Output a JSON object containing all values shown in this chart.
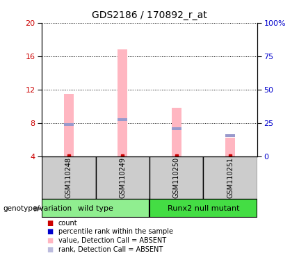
{
  "title": "GDS2186 / 170892_r_at",
  "samples": [
    "GSM110248",
    "GSM110249",
    "GSM110250",
    "GSM110251"
  ],
  "groups": [
    {
      "name": "wild type",
      "color": "#90EE90",
      "indices": [
        0,
        1
      ]
    },
    {
      "name": "Runx2 null mutant",
      "color": "#44DD44",
      "indices": [
        2,
        3
      ]
    }
  ],
  "ylim_left": [
    4,
    20
  ],
  "ylim_right": [
    0,
    100
  ],
  "yticks_left": [
    4,
    8,
    12,
    16,
    20
  ],
  "yticks_right": [
    0,
    25,
    50,
    75,
    100
  ],
  "ytick_labels_left": [
    "4",
    "8",
    "12",
    "16",
    "20"
  ],
  "ytick_labels_right": [
    "0",
    "25",
    "50",
    "75",
    "100%"
  ],
  "pink_bar_tops": [
    11.5,
    16.8,
    9.8,
    6.2
  ],
  "pink_bar_bottom": 4.0,
  "blue_seg_centers": [
    7.8,
    8.4,
    7.3,
    6.5
  ],
  "blue_seg_height": 0.35,
  "pink_bar_width": 0.18,
  "blue_bar_width": 0.18,
  "bar_positions": [
    0.5,
    1.5,
    2.5,
    3.5
  ],
  "xlim": [
    0,
    4
  ],
  "pink_color": "#FFB6C1",
  "blue_color": "#9999CC",
  "red_color": "#CC0000",
  "left_axis_color": "#CC0000",
  "right_axis_color": "#0000CC",
  "legend_items": [
    {
      "color": "#CC0000",
      "label": "count"
    },
    {
      "color": "#0000CC",
      "label": "percentile rank within the sample"
    },
    {
      "color": "#FFB6C1",
      "label": "value, Detection Call = ABSENT"
    },
    {
      "color": "#BBBBDD",
      "label": "rank, Detection Call = ABSENT"
    }
  ],
  "sample_box_color": "#CCCCCC",
  "group_colors": [
    "#90EE90",
    "#44DD44"
  ],
  "genotype_label": "genotype/variation"
}
